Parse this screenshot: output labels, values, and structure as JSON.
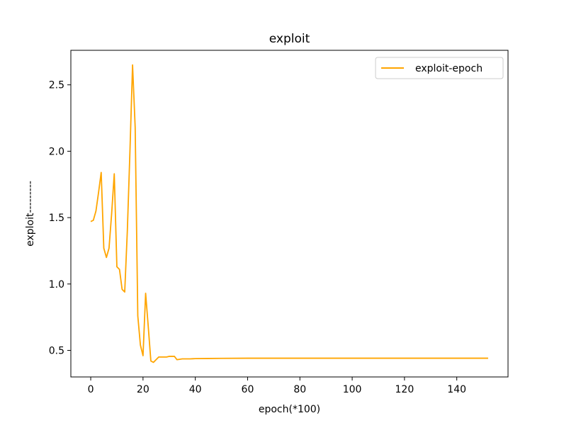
{
  "chart_data": {
    "type": "line",
    "title": "exploit",
    "xlabel": "epoch(*100)",
    "ylabel": "exploit---------",
    "xlim": [
      -7.6,
      159.6
    ],
    "ylim": [
      0.3,
      2.76
    ],
    "xticks": [
      0,
      20,
      40,
      60,
      80,
      100,
      120,
      140
    ],
    "yticks": [
      0.5,
      1.0,
      1.5,
      2.0,
      2.5
    ],
    "xtick_labels": [
      "0",
      "20",
      "40",
      "60",
      "80",
      "100",
      "120",
      "140"
    ],
    "ytick_labels": [
      "0.5",
      "1.0",
      "1.5",
      "2.0",
      "2.5"
    ],
    "grid": false,
    "legend_position": "top-right",
    "series": [
      {
        "name": "exploit-epoch",
        "color": "#ffa500",
        "x": [
          0,
          1,
          2,
          3,
          4,
          5,
          6,
          7,
          8,
          9,
          10,
          11,
          12,
          13,
          14,
          15,
          16,
          17,
          18,
          19,
          20,
          21,
          22,
          23,
          24,
          25,
          26,
          27,
          28,
          29,
          30,
          31,
          32,
          33,
          34,
          35,
          36,
          37,
          38,
          39,
          40,
          45,
          50,
          60,
          70,
          80,
          90,
          100,
          110,
          120,
          130,
          140,
          152
        ],
        "y": [
          1.47,
          1.48,
          1.55,
          1.69,
          1.84,
          1.27,
          1.2,
          1.27,
          1.53,
          1.83,
          1.13,
          1.11,
          0.96,
          0.94,
          1.4,
          2.0,
          2.65,
          2.18,
          0.76,
          0.54,
          0.46,
          0.93,
          0.68,
          0.42,
          0.41,
          0.43,
          0.45,
          0.45,
          0.45,
          0.45,
          0.455,
          0.455,
          0.455,
          0.43,
          0.433,
          0.436,
          0.436,
          0.436,
          0.436,
          0.437,
          0.438,
          0.439,
          0.44,
          0.441,
          0.441,
          0.441,
          0.441,
          0.441,
          0.441,
          0.441,
          0.441,
          0.441,
          0.441
        ]
      }
    ]
  }
}
